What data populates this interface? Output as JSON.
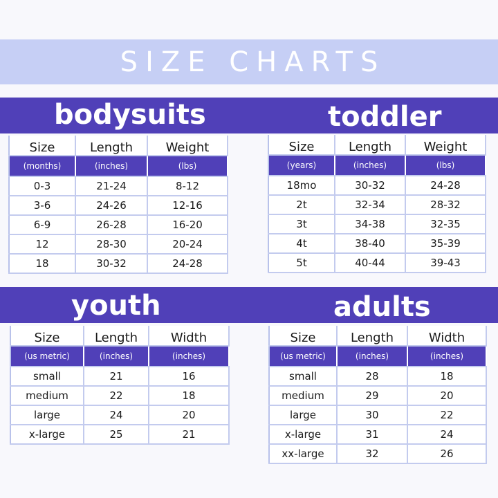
{
  "banner": {
    "title": "SIZE CHARTS"
  },
  "bodysuits": {
    "title": "bodysuits",
    "headers": [
      "Size",
      "Length",
      "Weight"
    ],
    "units": [
      "(months)",
      "(inches)",
      "(lbs)"
    ],
    "rows": [
      [
        "0-3",
        "21-24",
        "8-12"
      ],
      [
        "3-6",
        "24-26",
        "12-16"
      ],
      [
        "6-9",
        "26-28",
        "16-20"
      ],
      [
        "12",
        "28-30",
        "20-24"
      ],
      [
        "18",
        "30-32",
        "24-28"
      ]
    ]
  },
  "toddler": {
    "title": "toddler",
    "headers": [
      "Size",
      "Length",
      "Weight"
    ],
    "units": [
      "(years)",
      "(inches)",
      "(lbs)"
    ],
    "rows": [
      [
        "18mo",
        "30-32",
        "24-28"
      ],
      [
        "2t",
        "32-34",
        "28-32"
      ],
      [
        "3t",
        "34-38",
        "32-35"
      ],
      [
        "4t",
        "38-40",
        "35-39"
      ],
      [
        "5t",
        "40-44",
        "39-43"
      ]
    ]
  },
  "youth": {
    "title": "youth",
    "headers": [
      "Size",
      "Length",
      "Width"
    ],
    "units": [
      "(us metric)",
      "(inches)",
      "(inches)"
    ],
    "rows": [
      [
        "small",
        "21",
        "16"
      ],
      [
        "medium",
        "22",
        "18"
      ],
      [
        "large",
        "24",
        "20"
      ],
      [
        "x-large",
        "25",
        "21"
      ]
    ]
  },
  "adults": {
    "title": "adults",
    "headers": [
      "Size",
      "Length",
      "Width"
    ],
    "units": [
      "(us metric)",
      "(inches)",
      "(inches)"
    ],
    "rows": [
      [
        "small",
        "28",
        "18"
      ],
      [
        "medium",
        "29",
        "20"
      ],
      [
        "large",
        "30",
        "22"
      ],
      [
        "x-large",
        "31",
        "24"
      ],
      [
        "xx-large",
        "32",
        "26"
      ]
    ]
  },
  "colors": {
    "banner": "#c6cff5",
    "band": "#5040b8",
    "grid": "#c3cbee"
  }
}
